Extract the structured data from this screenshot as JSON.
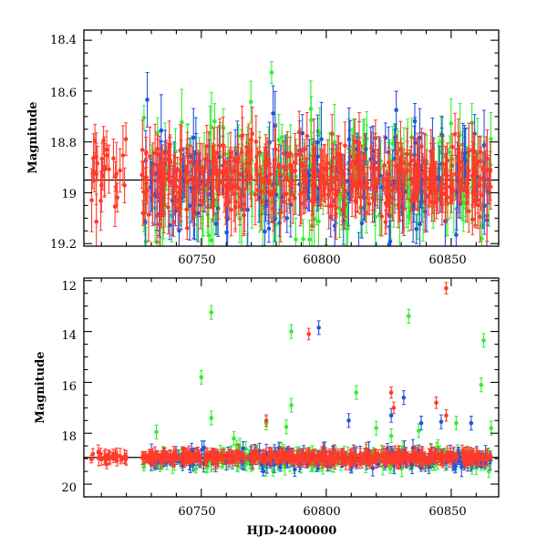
{
  "chart_data": [
    {
      "type": "scatter",
      "panel": "top",
      "xlim": [
        60703,
        60869
      ],
      "ylim": [
        18.36,
        19.21
      ],
      "y_inverted": true,
      "ylabel": "Magnitude",
      "xlabel": "",
      "x_ticks": [
        "60750",
        "60800",
        "60850"
      ],
      "y_ticks": [
        "18.4",
        "18.6",
        "18.8",
        "19",
        "19.2"
      ],
      "reference_line": 18.95,
      "grid": false,
      "series": [
        {
          "color": "#33ee33",
          "x_range": [
            60727,
            60866
          ],
          "mean": 18.95,
          "scatter": 0.22,
          "errorbar": 0.12,
          "n_points": 260
        },
        {
          "color": "#2255dd",
          "x_range": [
            60727,
            60866
          ],
          "mean": 18.97,
          "scatter": 0.2,
          "errorbar": 0.12,
          "n_points": 200
        },
        {
          "color": "#ff3a2a",
          "x_range": [
            60706,
            60866
          ],
          "mean": 18.94,
          "scatter": 0.13,
          "errorbar": 0.1,
          "n_points": 520
        }
      ]
    },
    {
      "type": "scatter",
      "panel": "bottom",
      "xlim": [
        60703,
        60869
      ],
      "ylim": [
        11.9,
        20.5
      ],
      "y_inverted": true,
      "ylabel": "Magnitude",
      "xlabel": "HJD-2400000",
      "x_ticks": [
        "60750",
        "60800",
        "60850"
      ],
      "y_ticks": [
        "12",
        "14",
        "16",
        "18",
        "20"
      ],
      "reference_line": 18.95,
      "grid": false,
      "series": [
        {
          "color": "#33ee33",
          "x_range": [
            60727,
            60866
          ],
          "mean": 19.05,
          "scatter": 0.35,
          "errorbar": 0.3,
          "n_points": 260,
          "outliers": [
            [
              60732,
              17.95
            ],
            [
              60750,
              15.8
            ],
            [
              60754,
              13.25
            ],
            [
              60754,
              17.4
            ],
            [
              60763,
              18.2
            ],
            [
              60776,
              17.6
            ],
            [
              60784,
              17.75
            ],
            [
              60786,
              14.0
            ],
            [
              60786,
              16.9
            ],
            [
              60812,
              16.4
            ],
            [
              60820,
              17.8
            ],
            [
              60826,
              18.1
            ],
            [
              60833,
              13.4
            ],
            [
              60837,
              17.9
            ],
            [
              60852,
              17.6
            ],
            [
              60862,
              16.1
            ],
            [
              60863,
              14.35
            ],
            [
              60866,
              17.8
            ]
          ]
        },
        {
          "color": "#2255dd",
          "x_range": [
            60727,
            60866
          ],
          "mean": 19.0,
          "scatter": 0.3,
          "errorbar": 0.3,
          "n_points": 200,
          "outliers": [
            [
              60797,
              13.85
            ],
            [
              60809,
              17.5
            ],
            [
              60826,
              17.3
            ],
            [
              60831,
              16.6
            ],
            [
              60838,
              17.6
            ],
            [
              60846,
              17.55
            ],
            [
              60858,
              17.6
            ]
          ]
        },
        {
          "color": "#ff3a2a",
          "x_range": [
            60706,
            60866
          ],
          "mean": 18.95,
          "scatter": 0.18,
          "errorbar": 0.25,
          "n_points": 520,
          "outliers": [
            [
              60776,
              17.5
            ],
            [
              60793,
              14.1
            ],
            [
              60826,
              16.4
            ],
            [
              60827,
              17.0
            ],
            [
              60844,
              16.8
            ],
            [
              60848,
              12.3
            ],
            [
              60848,
              17.3
            ]
          ]
        }
      ]
    }
  ]
}
